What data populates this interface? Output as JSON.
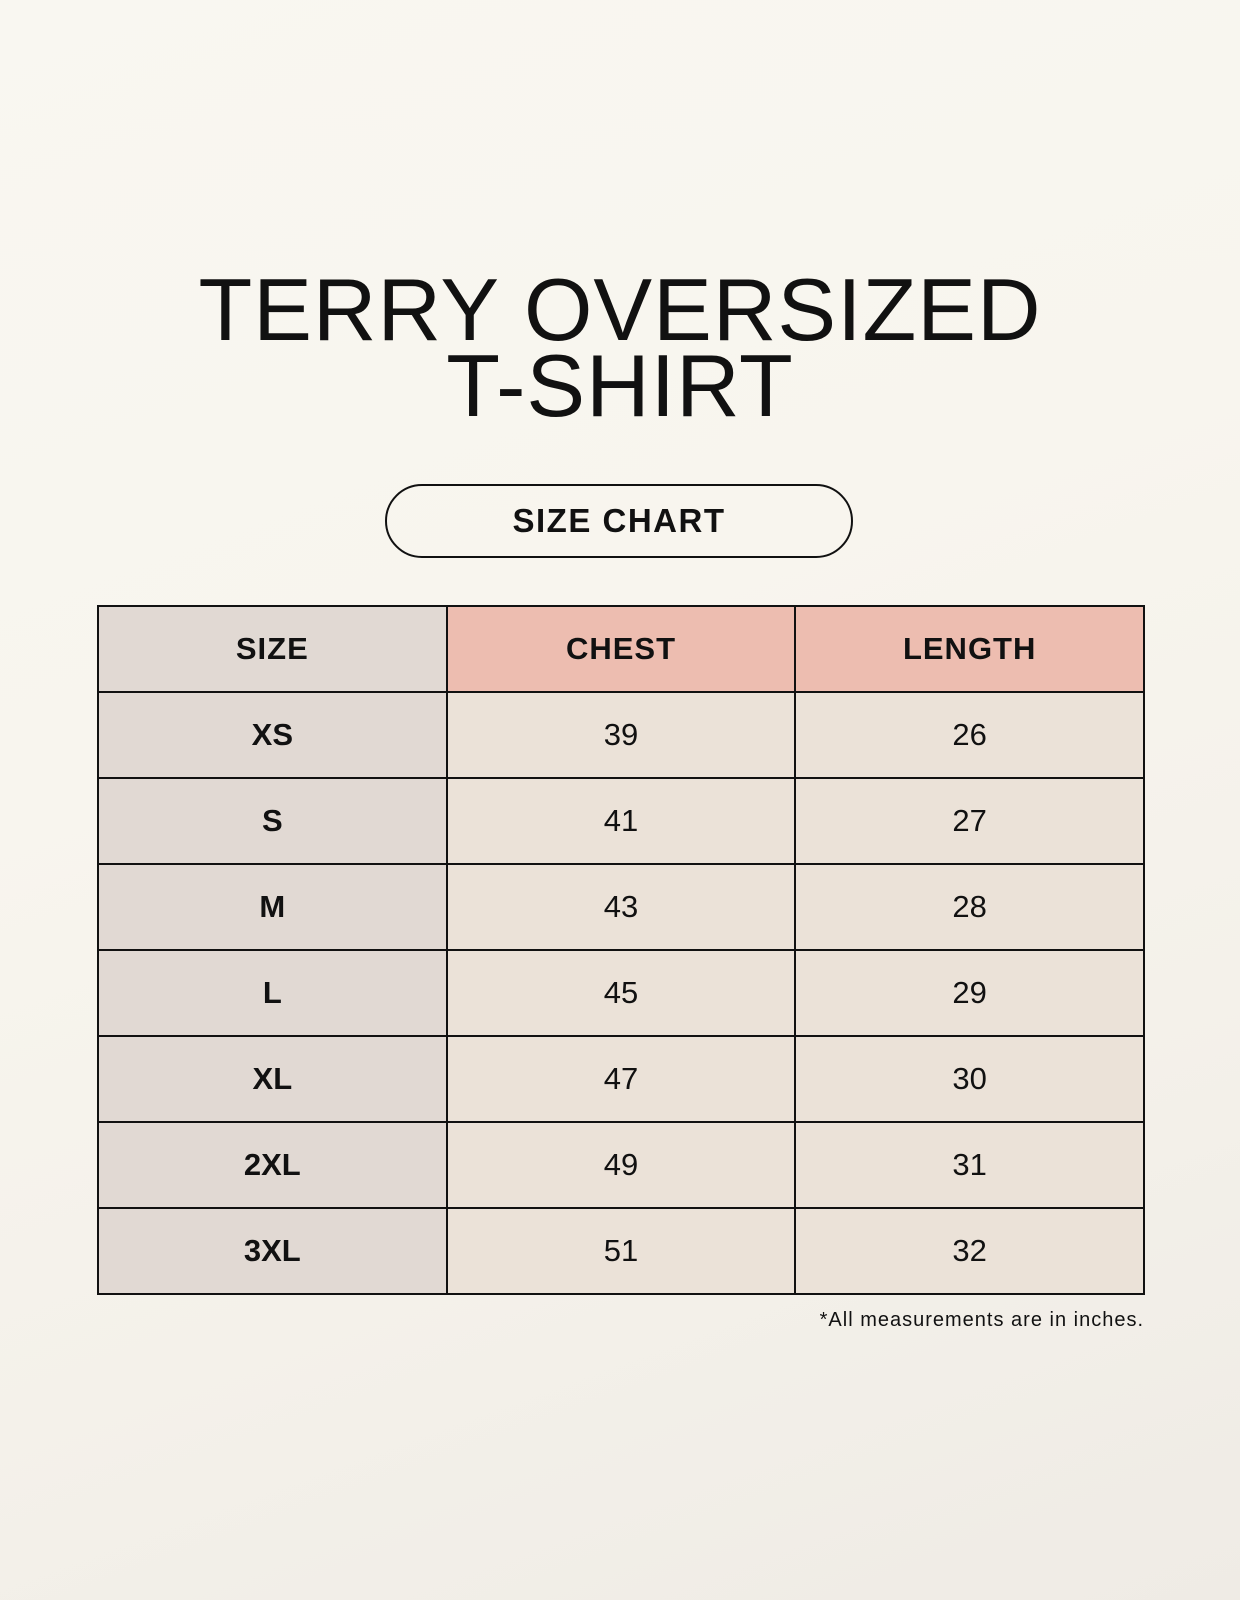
{
  "title_line1": "TERRY OVERSIZED",
  "title_line2": "T-SHIRT",
  "badge": "SIZE CHART",
  "table": {
    "headers": [
      "SIZE",
      "CHEST",
      "LENGTH"
    ],
    "rows": [
      [
        "XS",
        "39",
        "26"
      ],
      [
        "S",
        "41",
        "27"
      ],
      [
        "M",
        "43",
        "28"
      ],
      [
        "L",
        "45",
        "29"
      ],
      [
        "XL",
        "47",
        "30"
      ],
      [
        "2XL",
        "49",
        "31"
      ],
      [
        "3XL",
        "51",
        "32"
      ]
    ]
  },
  "note": "*All measurements are in inches.",
  "colors": {
    "size_column": "#e1d9d3",
    "header_accent": "#edbdb0",
    "cell": "#ebe2d8"
  }
}
